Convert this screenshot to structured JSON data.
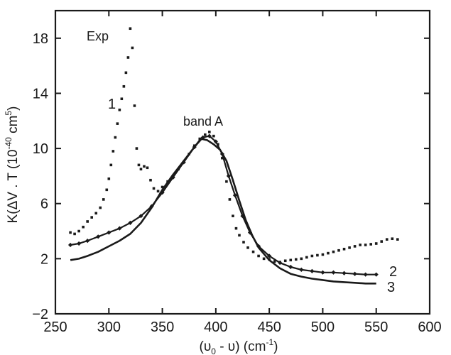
{
  "chart_data": {
    "type": "scatter",
    "xlim": [
      250,
      600
    ],
    "ylim": [
      -2,
      20
    ],
    "x_ticks": [
      250,
      300,
      350,
      400,
      450,
      500,
      550,
      600
    ],
    "y_ticks": [
      -2,
      2,
      6,
      10,
      14,
      18
    ],
    "tick_labels": {
      "x": [
        "250",
        "300",
        "350",
        "400",
        "450",
        "500",
        "550",
        "600"
      ],
      "y": [
        "−2",
        "2",
        "6",
        "10",
        "14",
        "18"
      ]
    },
    "xlabel": {
      "base": "(υ",
      "sub": "0",
      "mid": " - υ) (cm",
      "sup": "-1",
      "end": ")"
    },
    "ylabel": {
      "base": "K(ΔV . T (10",
      "sup1": "-40",
      "mid": " cm",
      "sup2": "5",
      "end": ")"
    },
    "grid": false,
    "annotations": {
      "exp": "Exp",
      "band": "band  A",
      "label1": "1",
      "label2": "2",
      "label3": "3"
    },
    "series": [
      {
        "name": "1",
        "style": "dots",
        "points": [
          [
            264,
            3.9
          ],
          [
            268,
            3.8
          ],
          [
            272,
            4.0
          ],
          [
            276,
            4.3
          ],
          [
            280,
            4.7
          ],
          [
            284,
            5.0
          ],
          [
            288,
            5.3
          ],
          [
            292,
            5.7
          ],
          [
            295,
            6.3
          ],
          [
            298,
            7.0
          ],
          [
            300,
            7.8
          ],
          [
            302,
            8.8
          ],
          [
            304,
            9.8
          ],
          [
            306,
            10.8
          ],
          [
            308,
            11.8
          ],
          [
            310,
            12.8
          ],
          [
            312,
            13.6
          ],
          [
            314,
            14.5
          ],
          [
            316,
            15.5
          ],
          [
            318,
            16.6
          ],
          [
            320,
            18.7
          ],
          [
            322,
            17.3
          ],
          [
            324,
            13.1
          ],
          [
            326,
            10.0
          ],
          [
            328,
            8.8
          ],
          [
            330,
            8.5
          ],
          [
            333,
            8.7
          ],
          [
            336,
            8.6
          ],
          [
            339,
            7.7
          ],
          [
            342,
            7.1
          ],
          [
            346,
            6.9
          ],
          [
            350,
            7.2
          ],
          [
            355,
            7.6
          ],
          [
            360,
            8.0
          ],
          [
            365,
            8.5
          ],
          [
            370,
            9.0
          ],
          [
            375,
            9.6
          ],
          [
            380,
            10.2
          ],
          [
            385,
            10.7
          ],
          [
            390,
            11.0
          ],
          [
            394,
            11.2
          ],
          [
            398,
            10.9
          ],
          [
            402,
            10.3
          ],
          [
            406,
            9.3
          ],
          [
            410,
            7.6
          ],
          [
            413,
            6.3
          ],
          [
            416,
            5.1
          ],
          [
            419,
            4.2
          ],
          [
            422,
            3.7
          ],
          [
            426,
            3.2
          ],
          [
            430,
            2.8
          ],
          [
            435,
            2.5
          ],
          [
            440,
            2.2
          ],
          [
            445,
            2.0
          ],
          [
            450,
            1.95
          ],
          [
            455,
            1.8
          ],
          [
            460,
            1.75
          ],
          [
            465,
            1.85
          ],
          [
            470,
            1.9
          ],
          [
            475,
            1.95
          ],
          [
            480,
            2.0
          ],
          [
            485,
            2.1
          ],
          [
            490,
            2.2
          ],
          [
            495,
            2.25
          ],
          [
            500,
            2.3
          ],
          [
            505,
            2.4
          ],
          [
            510,
            2.5
          ],
          [
            515,
            2.6
          ],
          [
            520,
            2.7
          ],
          [
            525,
            2.8
          ],
          [
            530,
            2.9
          ],
          [
            535,
            3.0
          ],
          [
            540,
            3.0
          ],
          [
            545,
            3.05
          ],
          [
            550,
            3.1
          ],
          [
            555,
            3.25
          ],
          [
            560,
            3.4
          ],
          [
            565,
            3.45
          ],
          [
            570,
            3.4
          ]
        ]
      },
      {
        "name": "2",
        "style": "line-markers",
        "points": [
          [
            264,
            3.0
          ],
          [
            272,
            3.1
          ],
          [
            280,
            3.3
          ],
          [
            290,
            3.6
          ],
          [
            300,
            3.9
          ],
          [
            310,
            4.2
          ],
          [
            320,
            4.6
          ],
          [
            330,
            5.1
          ],
          [
            340,
            5.8
          ],
          [
            350,
            6.8
          ],
          [
            360,
            7.9
          ],
          [
            370,
            9.0
          ],
          [
            380,
            10.1
          ],
          [
            388,
            10.8
          ],
          [
            394,
            10.9
          ],
          [
            400,
            10.5
          ],
          [
            406,
            9.6
          ],
          [
            412,
            8.0
          ],
          [
            418,
            6.6
          ],
          [
            425,
            5.1
          ],
          [
            432,
            3.9
          ],
          [
            440,
            2.9
          ],
          [
            450,
            2.2
          ],
          [
            460,
            1.7
          ],
          [
            470,
            1.4
          ],
          [
            480,
            1.2
          ],
          [
            490,
            1.1
          ],
          [
            500,
            1.0
          ],
          [
            510,
            1.0
          ],
          [
            520,
            0.95
          ],
          [
            530,
            0.9
          ],
          [
            540,
            0.85
          ],
          [
            550,
            0.85
          ]
        ]
      },
      {
        "name": "3",
        "style": "line",
        "points": [
          [
            264,
            1.9
          ],
          [
            272,
            2.0
          ],
          [
            280,
            2.2
          ],
          [
            290,
            2.5
          ],
          [
            300,
            2.9
          ],
          [
            310,
            3.3
          ],
          [
            320,
            3.8
          ],
          [
            330,
            4.6
          ],
          [
            340,
            5.7
          ],
          [
            350,
            7.0
          ],
          [
            360,
            8.1
          ],
          [
            370,
            9.1
          ],
          [
            380,
            10.1
          ],
          [
            386,
            10.7
          ],
          [
            392,
            10.6
          ],
          [
            398,
            10.3
          ],
          [
            404,
            9.9
          ],
          [
            410,
            9.1
          ],
          [
            416,
            7.7
          ],
          [
            422,
            6.2
          ],
          [
            428,
            4.8
          ],
          [
            434,
            3.7
          ],
          [
            440,
            2.8
          ],
          [
            450,
            1.9
          ],
          [
            460,
            1.3
          ],
          [
            470,
            0.9
          ],
          [
            480,
            0.7
          ],
          [
            490,
            0.55
          ],
          [
            500,
            0.45
          ],
          [
            510,
            0.35
          ],
          [
            520,
            0.3
          ],
          [
            530,
            0.25
          ],
          [
            540,
            0.2
          ],
          [
            550,
            0.2
          ]
        ]
      }
    ]
  }
}
